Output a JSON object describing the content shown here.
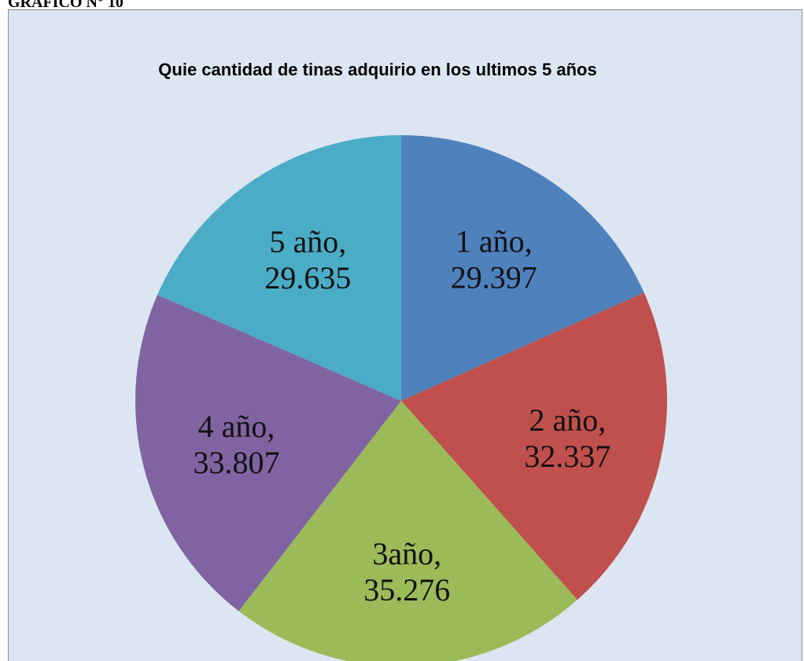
{
  "header": "GRAFICO N° 10",
  "chart_data": {
    "type": "pie",
    "title": "Quie cantidad de tinas adquirio en los ultimos  5 años",
    "categories": [
      "1 año,",
      "2 año,",
      "3año,",
      "4 año,",
      "5 año,"
    ],
    "values": [
      29.397,
      32.337,
      35.276,
      33.807,
      29.635
    ],
    "colors": [
      "#4f81bd",
      "#c0504d",
      "#9bbb59",
      "#8064a2",
      "#4bacc6"
    ]
  }
}
